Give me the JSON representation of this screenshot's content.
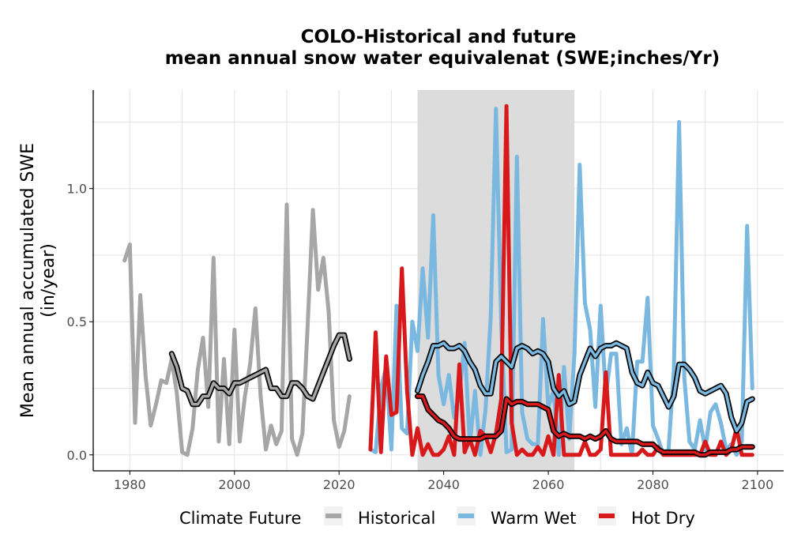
{
  "chart_data": {
    "type": "line",
    "title": "COLO-Historical and future",
    "subtitle": "mean annual snow water equivalenat (SWE;inches/Yr)",
    "xlabel": "",
    "ylabel": "Mean annual accumulated SWE",
    "ylabel_units": "(in/year)",
    "xlim": [
      1973,
      2105
    ],
    "ylim": [
      -0.06,
      1.37
    ],
    "x_ticks": [
      1980,
      2000,
      2020,
      2040,
      2060,
      2080,
      2100
    ],
    "y_ticks": [
      0.0,
      0.5,
      1.0
    ],
    "y_tick_labels": [
      "0.0",
      "0.5",
      "1.0"
    ],
    "grid": true,
    "shaded_period": [
      2035,
      2065
    ],
    "legend": {
      "title": "Climate Future",
      "position": "bottom",
      "entries": [
        "Historical",
        "Warm Wet",
        "Hot Dry"
      ]
    },
    "colors": {
      "Historical": "#a6a6a6",
      "Warm Wet": "#7ab8e0",
      "Hot Dry": "#d7191c",
      "smooth": "#000000",
      "shade": "#dcdcdc"
    },
    "series": [
      {
        "name": "Historical",
        "x": [
          1979,
          1980,
          1981,
          1982,
          1983,
          1984,
          1985,
          1986,
          1987,
          1988,
          1989,
          1990,
          1991,
          1992,
          1993,
          1994,
          1995,
          1996,
          1997,
          1998,
          1999,
          2000,
          2001,
          2002,
          2003,
          2004,
          2005,
          2006,
          2007,
          2008,
          2009,
          2010,
          2011,
          2012,
          2013,
          2014,
          2015,
          2016,
          2017,
          2018,
          2019,
          2020,
          2021,
          2022
        ],
        "values": [
          0.73,
          0.79,
          0.12,
          0.6,
          0.3,
          0.11,
          0.19,
          0.28,
          0.27,
          0.36,
          0.23,
          0.01,
          0.0,
          0.1,
          0.32,
          0.44,
          0.18,
          0.74,
          0.05,
          0.36,
          0.04,
          0.47,
          0.05,
          0.22,
          0.34,
          0.55,
          0.22,
          0.02,
          0.11,
          0.04,
          0.09,
          0.94,
          0.06,
          0.0,
          0.08,
          0.49,
          0.92,
          0.62,
          0.74,
          0.54,
          0.13,
          0.03,
          0.09,
          0.22
        ]
      },
      {
        "name": "Warm Wet",
        "x": [
          2026,
          2027,
          2028,
          2029,
          2030,
          2031,
          2032,
          2033,
          2034,
          2035,
          2036,
          2037,
          2038,
          2039,
          2040,
          2041,
          2042,
          2043,
          2044,
          2045,
          2046,
          2047,
          2048,
          2049,
          2050,
          2051,
          2052,
          2053,
          2054,
          2055,
          2056,
          2057,
          2058,
          2059,
          2060,
          2061,
          2062,
          2063,
          2064,
          2065,
          2066,
          2067,
          2068,
          2069,
          2070,
          2071,
          2072,
          2073,
          2074,
          2075,
          2076,
          2077,
          2078,
          2079,
          2080,
          2081,
          2082,
          2083,
          2084,
          2085,
          2086,
          2087,
          2088,
          2089,
          2090,
          2091,
          2092,
          2093,
          2094,
          2095,
          2096,
          2097,
          2098,
          2099
        ],
        "values": [
          0.02,
          0.01,
          0.25,
          0.33,
          0.02,
          0.56,
          0.1,
          0.08,
          0.5,
          0.39,
          0.7,
          0.44,
          0.9,
          0.3,
          0.19,
          0.3,
          0.14,
          0.23,
          0.42,
          0.04,
          0.24,
          0.0,
          0.17,
          0.52,
          1.3,
          0.49,
          0.01,
          0.02,
          1.12,
          0.16,
          0.06,
          0.04,
          0.04,
          0.51,
          0.18,
          0.24,
          0.0,
          0.33,
          0.06,
          0.38,
          1.09,
          0.57,
          0.47,
          0.18,
          0.56,
          0.22,
          0.38,
          0.38,
          0.04,
          0.1,
          0.0,
          0.35,
          0.35,
          0.59,
          0.11,
          0.06,
          0.0,
          0.02,
          0.32,
          1.25,
          0.29,
          0.05,
          0.02,
          0.13,
          0.02,
          0.16,
          0.19,
          0.12,
          0.02,
          0.04,
          0.0,
          0.05,
          0.86,
          0.25
        ]
      },
      {
        "name": "Hot Dry",
        "x": [
          2026,
          2027,
          2028,
          2029,
          2030,
          2031,
          2032,
          2033,
          2034,
          2035,
          2036,
          2037,
          2038,
          2039,
          2040,
          2041,
          2042,
          2043,
          2044,
          2045,
          2046,
          2047,
          2048,
          2049,
          2050,
          2051,
          2052,
          2053,
          2054,
          2055,
          2056,
          2057,
          2058,
          2059,
          2060,
          2061,
          2062,
          2063,
          2064,
          2065,
          2066,
          2067,
          2068,
          2069,
          2070,
          2071,
          2072,
          2073,
          2074,
          2075,
          2076,
          2077,
          2078,
          2079,
          2080,
          2081,
          2082,
          2083,
          2084,
          2085,
          2086,
          2087,
          2088,
          2089,
          2090,
          2091,
          2092,
          2093,
          2094,
          2095,
          2096,
          2097,
          2098,
          2099
        ],
        "values": [
          0.02,
          0.46,
          0.01,
          0.37,
          0.15,
          0.16,
          0.7,
          0.24,
          0.0,
          0.1,
          0.0,
          0.04,
          0.0,
          0.0,
          0.02,
          0.07,
          0.0,
          0.34,
          0.01,
          0.06,
          0.0,
          0.09,
          0.07,
          0.01,
          0.08,
          0.21,
          1.31,
          0.12,
          0.0,
          0.02,
          0.0,
          0.0,
          0.03,
          0.0,
          0.07,
          0.0,
          0.3,
          0.0,
          0.0,
          0.0,
          0.0,
          0.05,
          0.0,
          0.0,
          0.02,
          0.31,
          0.0,
          0.0,
          0.0,
          0.0,
          0.0,
          0.0,
          0.02,
          0.0,
          0.0,
          0.03,
          0.0,
          0.0,
          0.0,
          0.0,
          0.0,
          0.0,
          0.0,
          0.0,
          0.05,
          0.0,
          0.0,
          0.05,
          0.0,
          0.02,
          0.1,
          0.0,
          0.0,
          0.0
        ]
      }
    ],
    "smoothed": [
      {
        "of": "Historical",
        "x": [
          1988,
          1989,
          1990,
          1991,
          1992,
          1993,
          1994,
          1995,
          1996,
          1997,
          1998,
          1999,
          2000,
          2001,
          2002,
          2003,
          2004,
          2005,
          2006,
          2007,
          2008,
          2009,
          2010,
          2011,
          2012,
          2013,
          2014,
          2015,
          2016,
          2017,
          2018,
          2019,
          2020,
          2021,
          2022
        ],
        "values": [
          0.38,
          0.33,
          0.25,
          0.24,
          0.19,
          0.19,
          0.22,
          0.22,
          0.27,
          0.25,
          0.25,
          0.23,
          0.27,
          0.27,
          0.28,
          0.29,
          0.3,
          0.31,
          0.32,
          0.25,
          0.25,
          0.22,
          0.22,
          0.27,
          0.27,
          0.25,
          0.22,
          0.21,
          0.26,
          0.31,
          0.36,
          0.41,
          0.45,
          0.45,
          0.36
        ]
      },
      {
        "of": "Warm Wet",
        "x": [
          2035,
          2036,
          2037,
          2038,
          2039,
          2040,
          2041,
          2042,
          2043,
          2044,
          2045,
          2046,
          2047,
          2048,
          2049,
          2050,
          2051,
          2052,
          2053,
          2054,
          2055,
          2056,
          2057,
          2058,
          2059,
          2060,
          2061,
          2062,
          2063,
          2064,
          2065,
          2066,
          2067,
          2068,
          2069,
          2070,
          2071,
          2072,
          2073,
          2074,
          2075,
          2076,
          2077,
          2078,
          2079,
          2080,
          2081,
          2082,
          2083,
          2084,
          2085,
          2086,
          2087,
          2088,
          2089,
          2090,
          2091,
          2092,
          2093,
          2094,
          2095,
          2096,
          2097,
          2098,
          2099
        ],
        "values": [
          0.24,
          0.3,
          0.35,
          0.41,
          0.41,
          0.42,
          0.4,
          0.4,
          0.41,
          0.39,
          0.35,
          0.32,
          0.26,
          0.23,
          0.23,
          0.35,
          0.37,
          0.35,
          0.33,
          0.4,
          0.41,
          0.4,
          0.38,
          0.39,
          0.38,
          0.35,
          0.25,
          0.22,
          0.24,
          0.19,
          0.2,
          0.3,
          0.35,
          0.4,
          0.37,
          0.4,
          0.41,
          0.41,
          0.42,
          0.41,
          0.4,
          0.31,
          0.27,
          0.26,
          0.31,
          0.27,
          0.26,
          0.22,
          0.18,
          0.22,
          0.34,
          0.34,
          0.32,
          0.29,
          0.24,
          0.23,
          0.24,
          0.25,
          0.26,
          0.23,
          0.14,
          0.09,
          0.12,
          0.2,
          0.21
        ]
      },
      {
        "of": "Hot Dry",
        "x": [
          2035,
          2036,
          2037,
          2038,
          2039,
          2040,
          2041,
          2042,
          2043,
          2044,
          2045,
          2046,
          2047,
          2048,
          2049,
          2050,
          2051,
          2052,
          2053,
          2054,
          2055,
          2056,
          2057,
          2058,
          2059,
          2060,
          2061,
          2062,
          2063,
          2064,
          2065,
          2066,
          2067,
          2068,
          2069,
          2070,
          2071,
          2072,
          2073,
          2074,
          2075,
          2076,
          2077,
          2078,
          2079,
          2080,
          2081,
          2082,
          2083,
          2084,
          2085,
          2086,
          2087,
          2088,
          2089,
          2090,
          2091,
          2092,
          2093,
          2094,
          2095,
          2096,
          2097,
          2098,
          2099
        ],
        "values": [
          0.22,
          0.22,
          0.17,
          0.15,
          0.13,
          0.12,
          0.1,
          0.07,
          0.06,
          0.06,
          0.06,
          0.06,
          0.06,
          0.07,
          0.07,
          0.07,
          0.09,
          0.21,
          0.19,
          0.2,
          0.2,
          0.19,
          0.19,
          0.19,
          0.18,
          0.17,
          0.09,
          0.07,
          0.08,
          0.07,
          0.07,
          0.07,
          0.06,
          0.07,
          0.06,
          0.07,
          0.09,
          0.06,
          0.05,
          0.05,
          0.05,
          0.05,
          0.05,
          0.04,
          0.04,
          0.04,
          0.02,
          0.01,
          0.01,
          0.01,
          0.01,
          0.01,
          0.01,
          0.01,
          0.0,
          0.0,
          0.01,
          0.01,
          0.01,
          0.01,
          0.02,
          0.02,
          0.03,
          0.03,
          0.03
        ]
      }
    ]
  }
}
